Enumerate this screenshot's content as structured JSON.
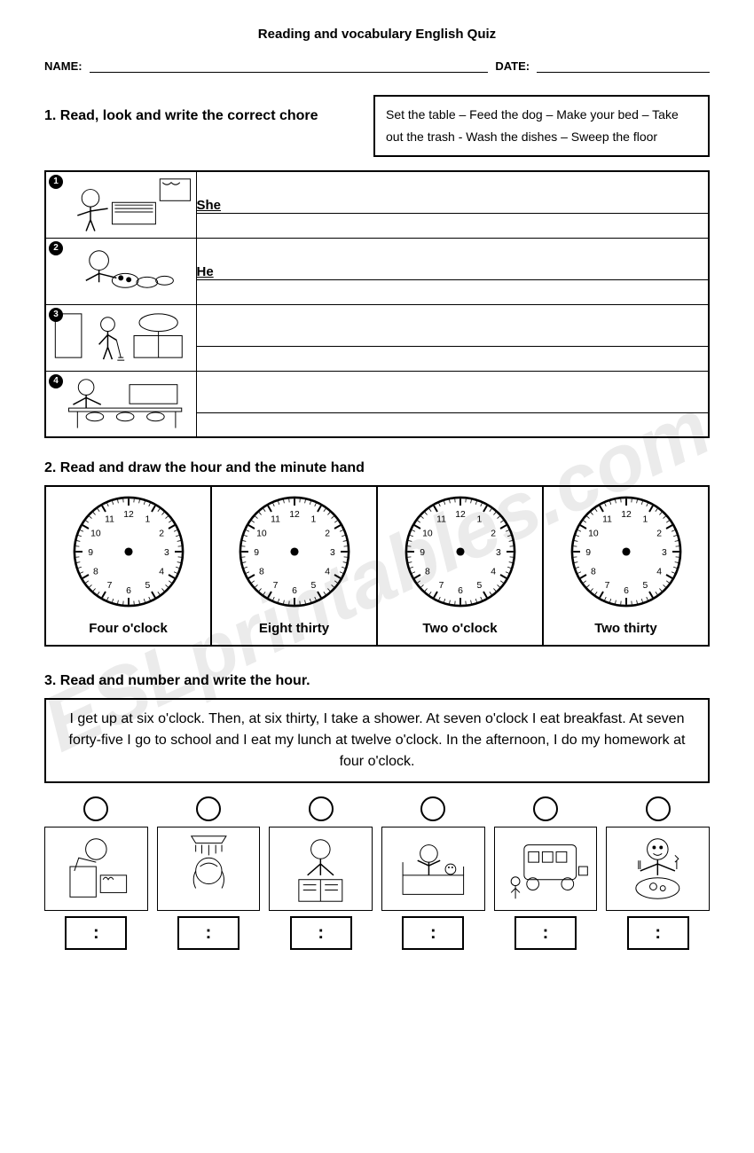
{
  "watermark": "ESLprintables.com",
  "title": "Reading and vocabulary English Quiz",
  "labels": {
    "name": "NAME:",
    "date": "DATE:"
  },
  "q1": {
    "heading": "1. Read, look and write the correct chore",
    "wordbank": "Set the table – Feed the dog – Make  your bed – Take out the trash - Wash the dishes – Sweep the floor",
    "rows": [
      {
        "num": "1",
        "prefix": "She"
      },
      {
        "num": "2",
        "prefix": "He"
      },
      {
        "num": "3",
        "prefix": ""
      },
      {
        "num": "4",
        "prefix": ""
      }
    ]
  },
  "q2": {
    "heading": "2. Read and draw the hour and the minute hand",
    "clocks": [
      {
        "label": "Four o'clock"
      },
      {
        "label": "Eight thirty"
      },
      {
        "label": "Two o'clock"
      },
      {
        "label": "Two thirty"
      }
    ],
    "clock_numbers": [
      "12",
      "1",
      "2",
      "3",
      "4",
      "5",
      "6",
      "7",
      "8",
      "9",
      "10",
      "11"
    ]
  },
  "q3": {
    "heading": "3. Read and number and write the hour.",
    "story": "I get up at six o'clock. Then, at six thirty, I take a shower. At seven o'clock I eat breakfast. At seven forty-five I go to school and I eat my lunch at twelve o'clock. In the afternoon, I do my homework at four o'clock.",
    "time_placeholder": ":",
    "activity_count": 6
  },
  "colors": {
    "text": "#000000",
    "bg": "#ffffff",
    "watermark": "rgba(0,0,0,0.08)",
    "border": "#000000"
  }
}
